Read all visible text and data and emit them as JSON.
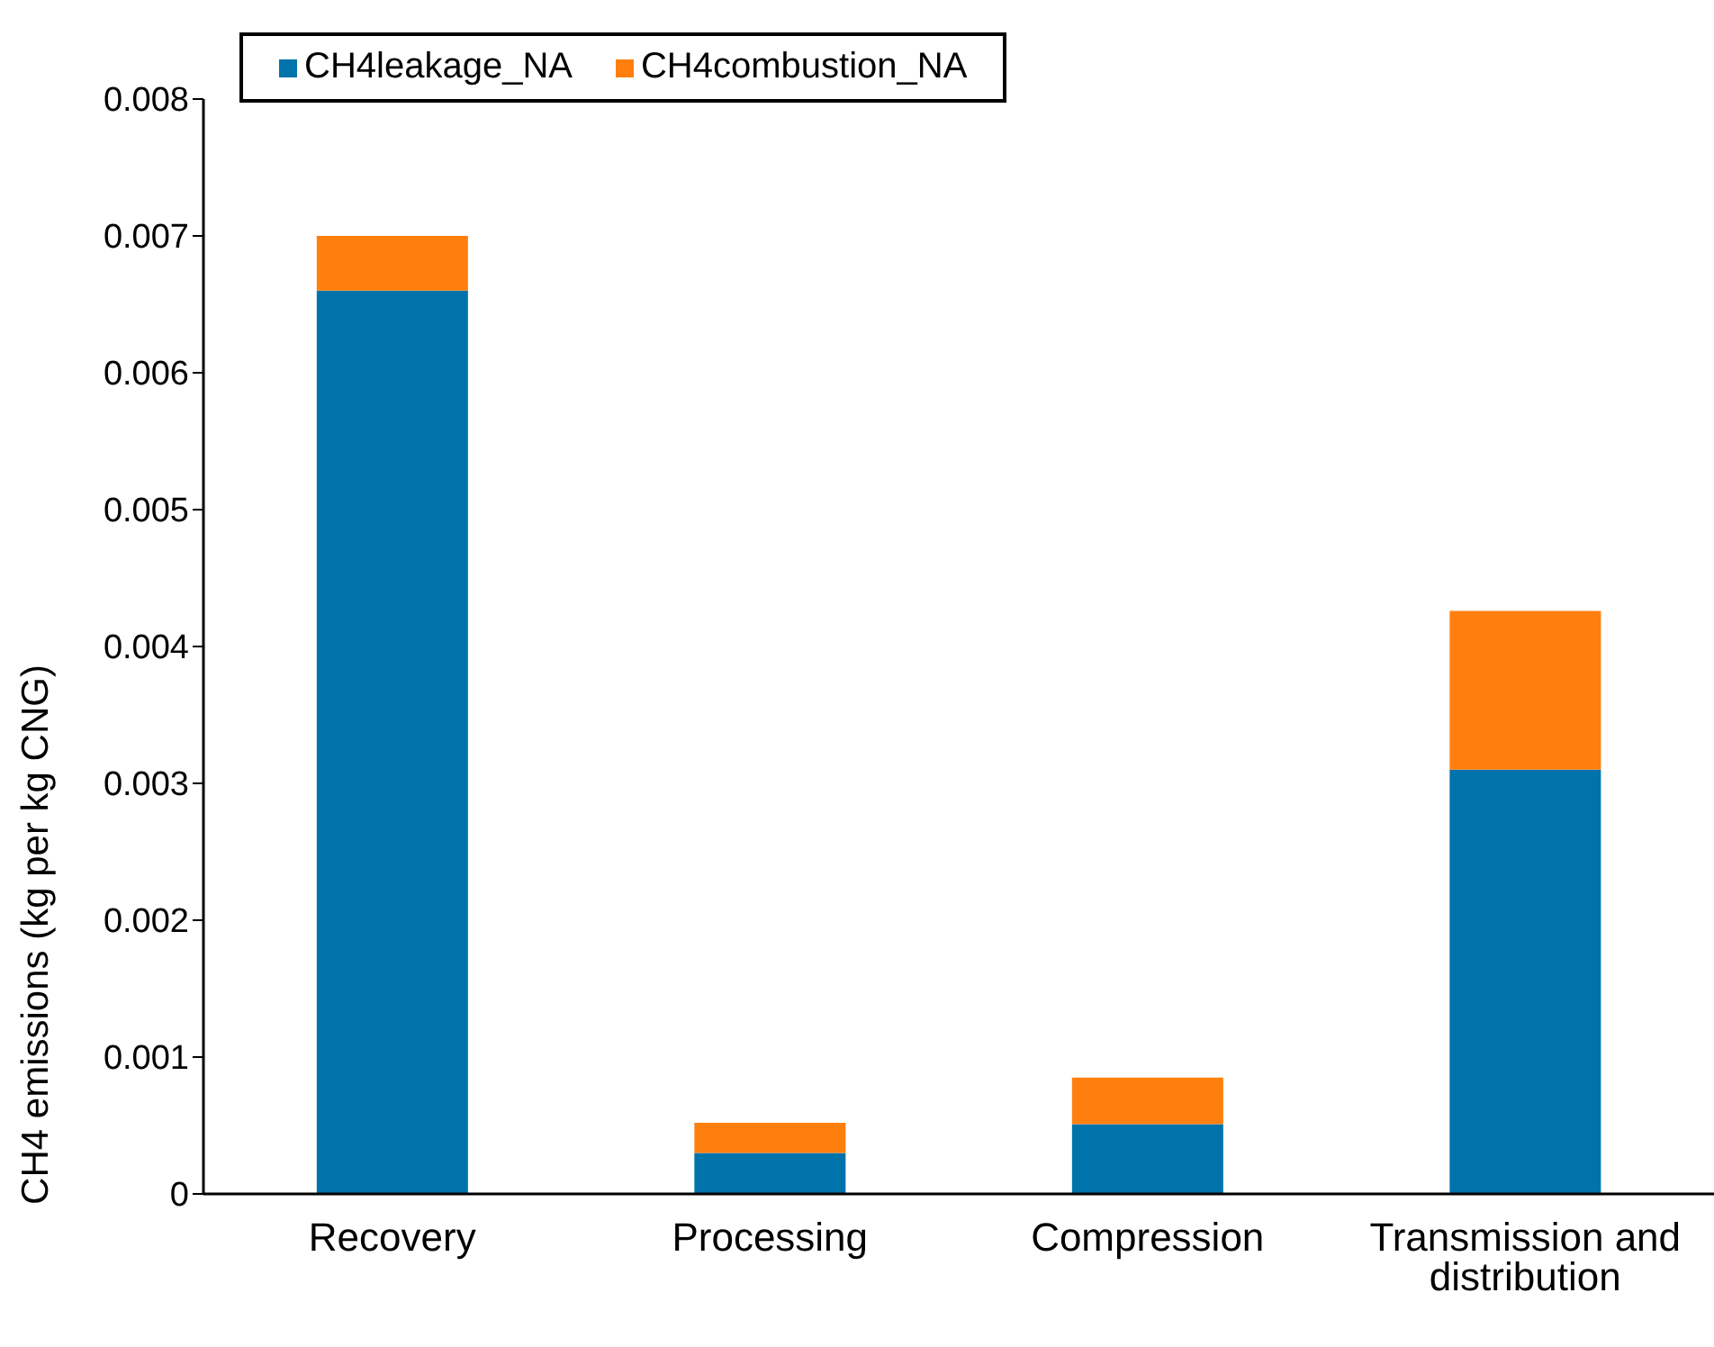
{
  "chart_data": {
    "type": "bar",
    "stacked": true,
    "ylabel": "CH4 emissions (kg per kg CNG)",
    "categories": [
      "Recovery",
      "Processing",
      "Compression",
      "Transmission and distribution"
    ],
    "series": [
      {
        "name": "CH4leakage_NA",
        "color": "#0073ab",
        "values": [
          0.0066,
          0.0003,
          0.00051,
          0.0031
        ]
      },
      {
        "name": "CH4combustion_NA",
        "color": "#ff7f0e",
        "values": [
          0.0004,
          0.00022,
          0.00034,
          0.00116
        ]
      }
    ],
    "ylim": [
      0,
      0.008
    ],
    "yticks": [
      0,
      0.001,
      0.002,
      0.003,
      0.004,
      0.005,
      0.006,
      0.007,
      0.008
    ],
    "grid": false,
    "legend": "top left"
  }
}
